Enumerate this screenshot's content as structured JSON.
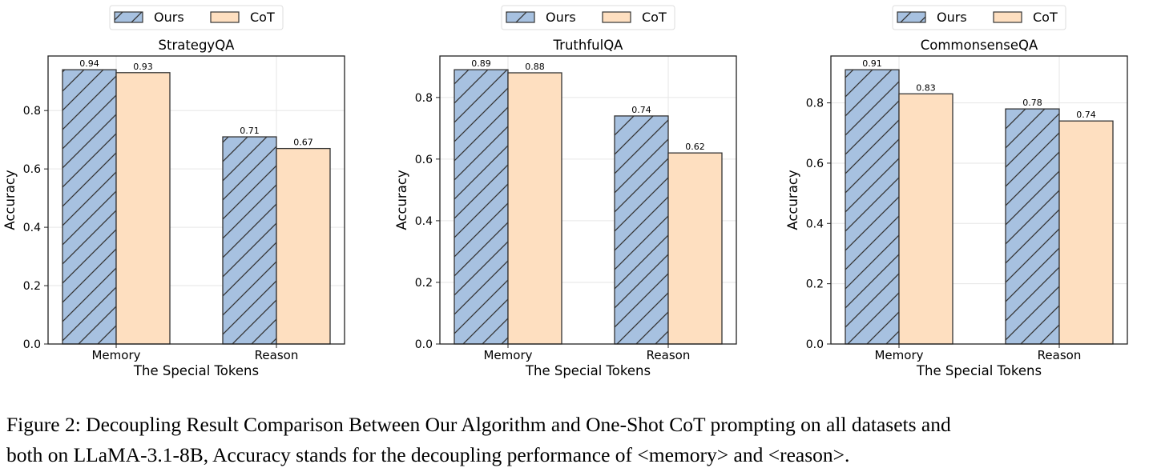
{
  "chart_data": [
    {
      "type": "bar",
      "title": "StrategyQA",
      "xlabel": "The Special Tokens",
      "ylabel": "Accuracy",
      "categories": [
        "Memory",
        "Reason"
      ],
      "series": [
        {
          "name": "Ours",
          "values": [
            0.94,
            0.71
          ]
        },
        {
          "name": "CoT",
          "values": [
            0.93,
            0.67
          ]
        }
      ],
      "data_labels": [
        [
          "0.94",
          "0.71"
        ],
        [
          "0.93",
          "0.67"
        ]
      ],
      "ylim": [
        0,
        0.987
      ],
      "yticks": [
        "0.0",
        "0.2",
        "0.4",
        "0.6",
        "0.8"
      ],
      "grid": true,
      "legend": "top-center"
    },
    {
      "type": "bar",
      "title": "TruthfulQA",
      "xlabel": "The Special Tokens",
      "ylabel": "Accuracy",
      "categories": [
        "Memory",
        "Reason"
      ],
      "series": [
        {
          "name": "Ours",
          "values": [
            0.89,
            0.74
          ]
        },
        {
          "name": "CoT",
          "values": [
            0.88,
            0.62
          ]
        }
      ],
      "data_labels": [
        [
          "0.89",
          "0.74"
        ],
        [
          "0.88",
          "0.62"
        ]
      ],
      "ylim": [
        0,
        0.9345
      ],
      "yticks": [
        "0.0",
        "0.2",
        "0.4",
        "0.6",
        "0.8"
      ],
      "grid": true,
      "legend": "top-center"
    },
    {
      "type": "bar",
      "title": "CommonsenseQA",
      "xlabel": "The Special Tokens",
      "ylabel": "Accuracy",
      "categories": [
        "Memory",
        "Reason"
      ],
      "series": [
        {
          "name": "Ours",
          "values": [
            0.91,
            0.78
          ]
        },
        {
          "name": "CoT",
          "values": [
            0.83,
            0.74
          ]
        }
      ],
      "data_labels": [
        [
          "0.91",
          "0.78"
        ],
        [
          "0.83",
          "0.74"
        ]
      ],
      "ylim": [
        0,
        0.9555
      ],
      "yticks": [
        "0.0",
        "0.2",
        "0.4",
        "0.6",
        "0.8"
      ],
      "grid": true,
      "legend": "top-center"
    }
  ],
  "colors": {
    "Ours": "#a7c1e0",
    "CoT": "#fedfc0",
    "edge": "#333333",
    "grid": "#e6e6e6"
  },
  "series_hatch": {
    "Ours": "diagonal",
    "CoT": "none"
  },
  "caption": {
    "line1": "Figure 2: Decoupling Result Comparison Between Our Algorithm and One-Shot CoT prompting on all datasets and",
    "line2": "both on LLaMA-3.1-8B, Accuracy stands for the decoupling performance of <memory> and <reason>."
  }
}
